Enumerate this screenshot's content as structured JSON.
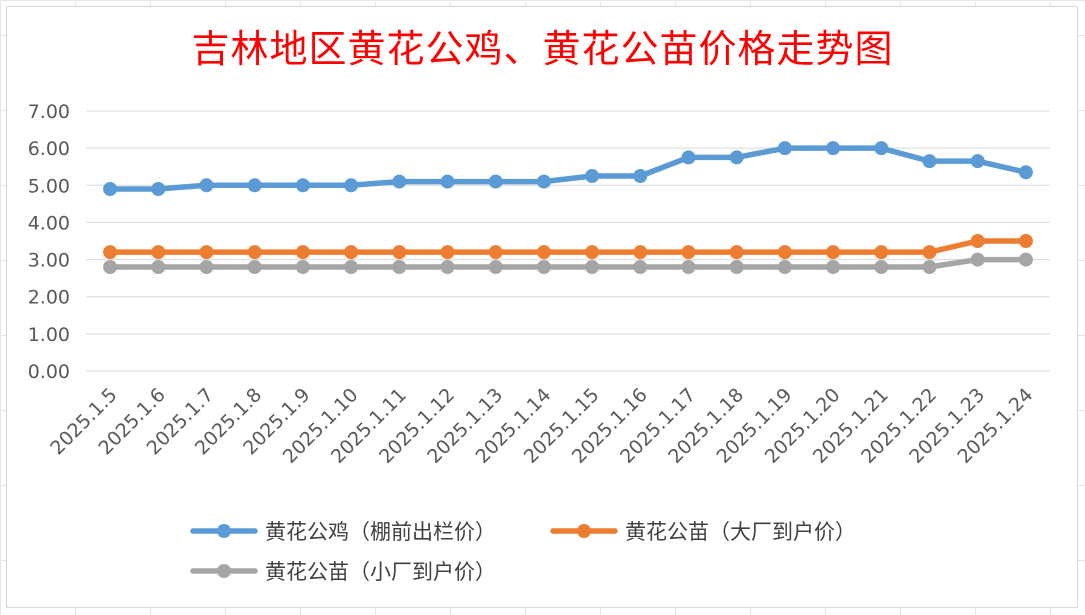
{
  "chart_data": {
    "type": "line",
    "title": "吉林地区黄花公鸡、黄花公苗价格走势图",
    "categories": [
      "2025.1.5",
      "2025.1.6",
      "2025.1.7",
      "2025.1.8",
      "2025.1.9",
      "2025.1.10",
      "2025.1.11",
      "2025.1.12",
      "2025.1.13",
      "2025.1.14",
      "2025.1.15",
      "2025.1.16",
      "2025.1.17",
      "2025.1.18",
      "2025.1.19",
      "2025.1.20",
      "2025.1.21",
      "2025.1.22",
      "2025.1.23",
      "2025.1.24"
    ],
    "series": [
      {
        "name": "黄花公鸡（棚前出栏价）",
        "color": "#5b9bd5",
        "values": [
          4.9,
          4.9,
          5.0,
          5.0,
          5.0,
          5.0,
          5.1,
          5.1,
          5.1,
          5.1,
          5.25,
          5.25,
          5.75,
          5.75,
          6.0,
          6.0,
          6.0,
          5.65,
          5.65,
          5.35
        ]
      },
      {
        "name": "黄花公苗（大厂到户价）",
        "color": "#ed7d31",
        "values": [
          3.2,
          3.2,
          3.2,
          3.2,
          3.2,
          3.2,
          3.2,
          3.2,
          3.2,
          3.2,
          3.2,
          3.2,
          3.2,
          3.2,
          3.2,
          3.2,
          3.2,
          3.2,
          3.5,
          3.5
        ]
      },
      {
        "name": "黄花公苗（小厂到户价）",
        "color": "#a5a5a5",
        "values": [
          2.8,
          2.8,
          2.8,
          2.8,
          2.8,
          2.8,
          2.8,
          2.8,
          2.8,
          2.8,
          2.8,
          2.8,
          2.8,
          2.8,
          2.8,
          2.8,
          2.8,
          2.8,
          3.0,
          3.0
        ]
      }
    ],
    "yticks": [
      "0.00",
      "1.00",
      "2.00",
      "3.00",
      "4.00",
      "5.00",
      "6.00",
      "7.00"
    ],
    "ylim": [
      0,
      7
    ],
    "grid": true,
    "legend_position": "bottom"
  }
}
